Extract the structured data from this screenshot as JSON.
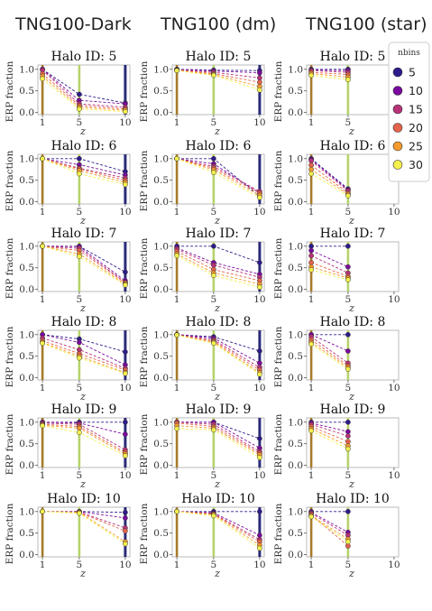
{
  "columns": [
    {
      "title": "TNG100-Dark"
    },
    {
      "title": "TNG100 (dm)"
    },
    {
      "title": "TNG100 (star)"
    }
  ],
  "colors": {
    "series": [
      "#2e1a8c",
      "#7a0a9e",
      "#b8327a",
      "#e4634b",
      "#f59a2c",
      "#f4f14d"
    ],
    "vline_z1": "#a67b2a",
    "vline_z5": "#b6d36b",
    "vline_z10": "#2a2a7a",
    "axes": "#bbbbbb"
  },
  "chart_data": {
    "type": "line",
    "x": [
      1,
      5,
      10
    ],
    "xticks": [
      "1",
      "5",
      "10"
    ],
    "yticks": [
      "0.0",
      "0.5",
      "1.0"
    ],
    "xlabel": "z",
    "ylabel": "ERP fraction",
    "xlim": [
      0.5,
      10.5
    ],
    "ylim": [
      -0.05,
      1.1
    ],
    "legend": {
      "title": "nbins",
      "entries": [
        "5",
        "10",
        "15",
        "20",
        "25",
        "30"
      ],
      "placement": "right of top-right panel"
    },
    "panels": [
      {
        "column": "TNG100-Dark",
        "title": "Halo ID: 5",
        "vlines": [
          1,
          5,
          10
        ],
        "series": [
          {
            "name": "5",
            "values": [
              1.0,
              0.42,
              0.22
            ]
          },
          {
            "name": "10",
            "values": [
              1.0,
              0.28,
              0.2
            ]
          },
          {
            "name": "15",
            "values": [
              0.98,
              0.2,
              0.12
            ]
          },
          {
            "name": "20",
            "values": [
              0.9,
              0.16,
              0.08
            ]
          },
          {
            "name": "25",
            "values": [
              0.84,
              0.12,
              0.05
            ]
          },
          {
            "name": "30",
            "values": [
              0.78,
              0.08,
              0.02
            ]
          }
        ]
      },
      {
        "column": "TNG100 (dm)",
        "title": "Halo ID: 5",
        "vlines": [
          1,
          5,
          10
        ],
        "series": [
          {
            "name": "5",
            "values": [
              1.0,
              0.98,
              0.97
            ]
          },
          {
            "name": "10",
            "values": [
              1.0,
              0.96,
              0.92
            ]
          },
          {
            "name": "15",
            "values": [
              0.99,
              0.93,
              0.8
            ]
          },
          {
            "name": "20",
            "values": [
              0.98,
              0.9,
              0.7
            ]
          },
          {
            "name": "25",
            "values": [
              0.97,
              0.88,
              0.6
            ]
          },
          {
            "name": "30",
            "values": [
              0.97,
              0.86,
              0.52
            ]
          }
        ]
      },
      {
        "column": "TNG100 (star)",
        "title": "Halo ID: 5",
        "vlines": [
          1,
          5
        ],
        "series": [
          {
            "name": "5",
            "values": [
              1.0,
              1.0,
              null
            ]
          },
          {
            "name": "10",
            "values": [
              0.98,
              0.97,
              null
            ]
          },
          {
            "name": "15",
            "values": [
              0.97,
              0.93,
              null
            ]
          },
          {
            "name": "20",
            "values": [
              0.93,
              0.88,
              null
            ]
          },
          {
            "name": "25",
            "values": [
              0.9,
              0.82,
              null
            ]
          },
          {
            "name": "30",
            "values": [
              0.86,
              0.76,
              null
            ]
          }
        ]
      },
      {
        "column": "TNG100-Dark",
        "title": "Halo ID: 6",
        "vlines": [
          1,
          5,
          10
        ],
        "series": [
          {
            "name": "5",
            "values": [
              1.0,
              1.0,
              0.7
            ]
          },
          {
            "name": "10",
            "values": [
              1.0,
              0.86,
              0.62
            ]
          },
          {
            "name": "15",
            "values": [
              1.0,
              0.78,
              0.55
            ]
          },
          {
            "name": "20",
            "values": [
              1.0,
              0.76,
              0.5
            ]
          },
          {
            "name": "25",
            "values": [
              1.0,
              0.72,
              0.45
            ]
          },
          {
            "name": "30",
            "values": [
              1.0,
              0.65,
              0.4
            ]
          }
        ]
      },
      {
        "column": "TNG100 (dm)",
        "title": "Halo ID: 6",
        "vlines": [
          1,
          5,
          10
        ],
        "series": [
          {
            "name": "5",
            "values": [
              1.0,
              1.0,
              0.12
            ]
          },
          {
            "name": "10",
            "values": [
              1.0,
              0.88,
              0.2
            ]
          },
          {
            "name": "15",
            "values": [
              1.0,
              0.82,
              0.24
            ]
          },
          {
            "name": "20",
            "values": [
              1.0,
              0.78,
              0.2
            ]
          },
          {
            "name": "25",
            "values": [
              1.0,
              0.74,
              0.15
            ]
          },
          {
            "name": "30",
            "values": [
              1.0,
              0.68,
              0.1
            ]
          }
        ]
      },
      {
        "column": "TNG100 (star)",
        "title": "Halo ID: 6",
        "vlines": [
          1,
          5
        ],
        "series": [
          {
            "name": "5",
            "values": [
              1.0,
              0.3,
              null
            ]
          },
          {
            "name": "10",
            "values": [
              0.98,
              0.28,
              null
            ]
          },
          {
            "name": "15",
            "values": [
              0.95,
              0.25,
              null
            ]
          },
          {
            "name": "20",
            "values": [
              0.85,
              0.2,
              null
            ]
          },
          {
            "name": "25",
            "values": [
              0.75,
              0.17,
              null
            ]
          },
          {
            "name": "30",
            "values": [
              0.65,
              0.14,
              null
            ]
          }
        ]
      },
      {
        "column": "TNG100-Dark",
        "title": "Halo ID: 7",
        "vlines": [
          1,
          5,
          10
        ],
        "series": [
          {
            "name": "5",
            "values": [
              1.0,
              1.0,
              0.4
            ]
          },
          {
            "name": "10",
            "values": [
              1.0,
              0.99,
              0.2
            ]
          },
          {
            "name": "15",
            "values": [
              1.0,
              0.95,
              0.16
            ]
          },
          {
            "name": "20",
            "values": [
              1.0,
              0.9,
              0.15
            ]
          },
          {
            "name": "25",
            "values": [
              1.0,
              0.82,
              0.12
            ]
          },
          {
            "name": "30",
            "values": [
              1.0,
              0.76,
              0.1
            ]
          }
        ]
      },
      {
        "column": "TNG100 (dm)",
        "title": "Halo ID: 7",
        "vlines": [
          1,
          5,
          10
        ],
        "series": [
          {
            "name": "5",
            "values": [
              1.0,
              1.0,
              0.62
            ]
          },
          {
            "name": "10",
            "values": [
              0.96,
              0.62,
              0.35
            ]
          },
          {
            "name": "15",
            "values": [
              0.93,
              0.56,
              0.28
            ]
          },
          {
            "name": "20",
            "values": [
              0.88,
              0.46,
              0.2
            ]
          },
          {
            "name": "25",
            "values": [
              0.82,
              0.38,
              0.12
            ]
          },
          {
            "name": "30",
            "values": [
              0.78,
              0.32,
              0.05
            ]
          }
        ]
      },
      {
        "column": "TNG100 (star)",
        "title": "Halo ID: 7",
        "vlines": [
          1,
          5
        ],
        "series": [
          {
            "name": "5",
            "values": [
              1.0,
              1.0,
              null
            ]
          },
          {
            "name": "10",
            "values": [
              0.9,
              0.52,
              null
            ]
          },
          {
            "name": "15",
            "values": [
              0.78,
              0.38,
              null
            ]
          },
          {
            "name": "20",
            "values": [
              0.62,
              0.3,
              null
            ]
          },
          {
            "name": "25",
            "values": [
              0.52,
              0.26,
              null
            ]
          },
          {
            "name": "30",
            "values": [
              0.45,
              0.22,
              null
            ]
          }
        ]
      },
      {
        "column": "TNG100-Dark",
        "title": "Halo ID: 8",
        "vlines": [
          1,
          5,
          10
        ],
        "series": [
          {
            "name": "5",
            "values": [
              1.0,
              0.9,
              0.6
            ]
          },
          {
            "name": "10",
            "values": [
              1.0,
              0.82,
              0.3
            ]
          },
          {
            "name": "15",
            "values": [
              0.92,
              0.65,
              0.22
            ]
          },
          {
            "name": "20",
            "values": [
              0.86,
              0.56,
              0.18
            ]
          },
          {
            "name": "25",
            "values": [
              0.82,
              0.5,
              0.12
            ]
          },
          {
            "name": "30",
            "values": [
              0.8,
              0.46,
              0.1
            ]
          }
        ]
      },
      {
        "column": "TNG100 (dm)",
        "title": "Halo ID: 8",
        "vlines": [
          1,
          5,
          10
        ],
        "series": [
          {
            "name": "5",
            "values": [
              1.0,
              0.95,
              0.62
            ]
          },
          {
            "name": "10",
            "values": [
              1.0,
              0.92,
              0.34
            ]
          },
          {
            "name": "15",
            "values": [
              1.0,
              0.88,
              0.24
            ]
          },
          {
            "name": "20",
            "values": [
              0.99,
              0.85,
              0.18
            ]
          },
          {
            "name": "25",
            "values": [
              0.99,
              0.82,
              0.12
            ]
          },
          {
            "name": "30",
            "values": [
              0.99,
              0.8,
              0.08
            ]
          }
        ]
      },
      {
        "column": "TNG100 (star)",
        "title": "Halo ID: 8",
        "vlines": [
          1,
          5
        ],
        "series": [
          {
            "name": "5",
            "values": [
              1.0,
              1.0,
              null
            ]
          },
          {
            "name": "10",
            "values": [
              1.0,
              0.62,
              null
            ]
          },
          {
            "name": "15",
            "values": [
              0.95,
              0.34,
              null
            ]
          },
          {
            "name": "20",
            "values": [
              0.88,
              0.28,
              null
            ]
          },
          {
            "name": "25",
            "values": [
              0.82,
              0.24,
              null
            ]
          },
          {
            "name": "30",
            "values": [
              0.78,
              0.2,
              null
            ]
          }
        ]
      },
      {
        "column": "TNG100-Dark",
        "title": "Halo ID: 9",
        "vlines": [
          1,
          5,
          10
        ],
        "series": [
          {
            "name": "5",
            "values": [
              1.0,
              1.0,
              1.0
            ]
          },
          {
            "name": "10",
            "values": [
              1.0,
              0.98,
              0.72
            ]
          },
          {
            "name": "15",
            "values": [
              0.98,
              0.95,
              0.36
            ]
          },
          {
            "name": "20",
            "values": [
              0.95,
              0.9,
              0.3
            ]
          },
          {
            "name": "25",
            "values": [
              0.93,
              0.86,
              0.26
            ]
          },
          {
            "name": "30",
            "values": [
              0.92,
              0.76,
              0.22
            ]
          }
        ]
      },
      {
        "column": "TNG100 (dm)",
        "title": "Halo ID: 9",
        "vlines": [
          1,
          5,
          10
        ],
        "series": [
          {
            "name": "5",
            "values": [
              1.0,
              1.0,
              0.62
            ]
          },
          {
            "name": "10",
            "values": [
              1.0,
              1.0,
              0.4
            ]
          },
          {
            "name": "15",
            "values": [
              1.0,
              0.95,
              0.32
            ]
          },
          {
            "name": "20",
            "values": [
              0.98,
              0.9,
              0.28
            ]
          },
          {
            "name": "25",
            "values": [
              0.92,
              0.86,
              0.24
            ]
          },
          {
            "name": "30",
            "values": [
              0.85,
              0.82,
              0.18
            ]
          }
        ]
      },
      {
        "column": "TNG100 (star)",
        "title": "Halo ID: 9",
        "vlines": [
          1,
          5
        ],
        "series": [
          {
            "name": "5",
            "values": [
              1.0,
              1.0,
              null
            ]
          },
          {
            "name": "10",
            "values": [
              0.98,
              0.78,
              null
            ]
          },
          {
            "name": "15",
            "values": [
              0.95,
              0.68,
              null
            ]
          },
          {
            "name": "20",
            "values": [
              0.9,
              0.55,
              null
            ]
          },
          {
            "name": "25",
            "values": [
              0.85,
              0.45,
              null
            ]
          },
          {
            "name": "30",
            "values": [
              0.8,
              0.38,
              null
            ]
          }
        ]
      },
      {
        "column": "TNG100-Dark",
        "title": "Halo ID: 10",
        "vlines": [
          1,
          5,
          10
        ],
        "series": [
          {
            "name": "5",
            "values": [
              1.0,
              1.0,
              0.98
            ]
          },
          {
            "name": "10",
            "values": [
              1.0,
              1.0,
              0.85
            ]
          },
          {
            "name": "15",
            "values": [
              1.0,
              0.99,
              0.62
            ]
          },
          {
            "name": "20",
            "values": [
              1.0,
              0.98,
              0.55
            ]
          },
          {
            "name": "25",
            "values": [
              1.0,
              0.98,
              0.3
            ]
          },
          {
            "name": "30",
            "values": [
              1.0,
              0.96,
              0.25
            ]
          }
        ]
      },
      {
        "column": "TNG100 (dm)",
        "title": "Halo ID: 10",
        "vlines": [
          1,
          5,
          10
        ],
        "series": [
          {
            "name": "5",
            "values": [
              1.0,
              1.0,
              1.0
            ]
          },
          {
            "name": "10",
            "values": [
              1.0,
              0.97,
              0.45
            ]
          },
          {
            "name": "15",
            "values": [
              1.0,
              0.95,
              0.35
            ]
          },
          {
            "name": "20",
            "values": [
              1.0,
              0.94,
              0.3
            ]
          },
          {
            "name": "25",
            "values": [
              1.0,
              0.93,
              0.22
            ]
          },
          {
            "name": "30",
            "values": [
              1.0,
              0.9,
              0.15
            ]
          }
        ]
      },
      {
        "column": "TNG100 (star)",
        "title": "Halo ID: 10",
        "vlines": [
          1,
          5
        ],
        "series": [
          {
            "name": "5",
            "values": [
              1.0,
              1.0,
              null
            ]
          },
          {
            "name": "10",
            "values": [
              0.98,
              0.52,
              null
            ]
          },
          {
            "name": "15",
            "values": [
              0.96,
              0.45,
              null
            ]
          },
          {
            "name": "20",
            "values": [
              0.93,
              0.2,
              null
            ]
          },
          {
            "name": "25",
            "values": [
              0.9,
              0.36,
              null
            ]
          },
          {
            "name": "30",
            "values": [
              0.88,
              0.3,
              null
            ]
          }
        ]
      }
    ]
  }
}
